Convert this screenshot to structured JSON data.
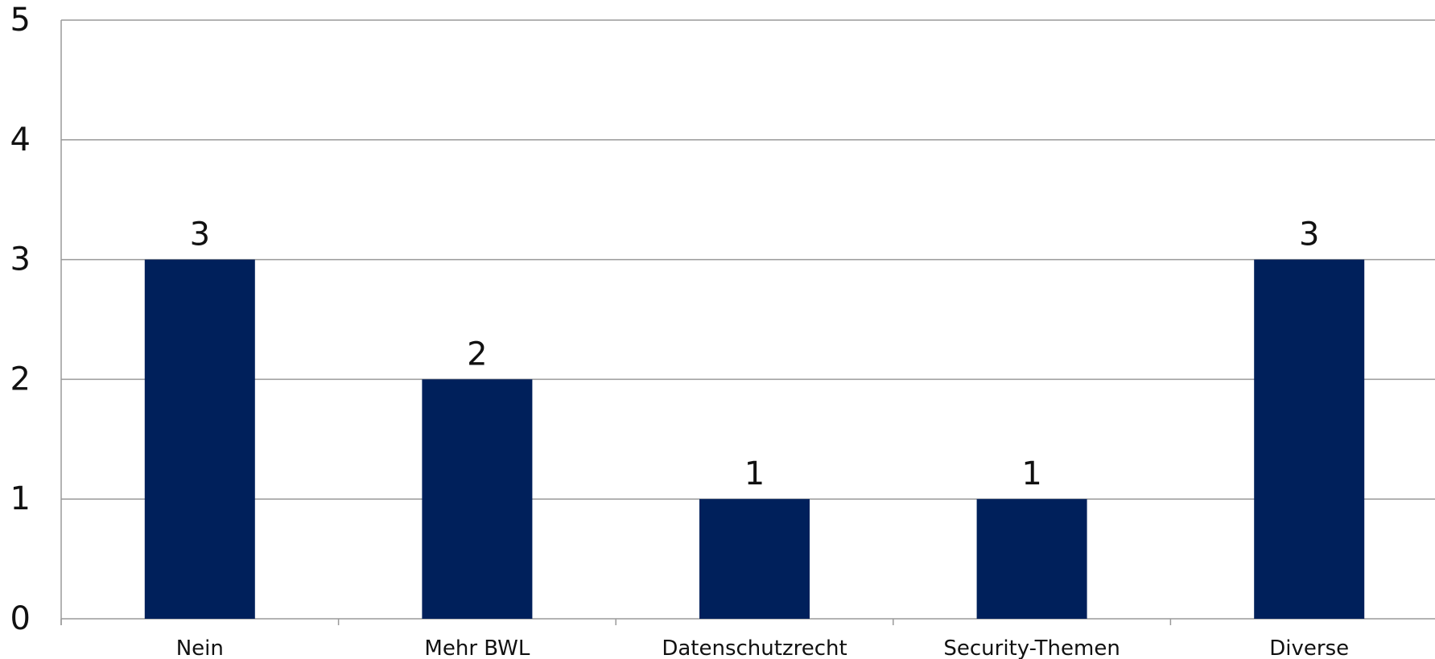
{
  "chart_data": {
    "type": "bar",
    "title": "",
    "xlabel": "",
    "ylabel": "",
    "categories": [
      "Nein",
      "Mehr BWL",
      "Datenschutzrecht",
      "Security-Themen",
      "Diverse"
    ],
    "series": [
      {
        "values": [
          3,
          2,
          1,
          1,
          3
        ]
      }
    ],
    "data_labels": [
      "3",
      "2",
      "1",
      "1",
      "3"
    ],
    "ylim": [
      0,
      5
    ],
    "y_ticks": [
      0,
      1,
      2,
      3,
      4,
      5
    ],
    "y_tick_labels": [
      "0",
      "1",
      "2",
      "3",
      "4",
      "5"
    ],
    "grid": true,
    "legend": "none",
    "colors": {
      "bar": "#00205B",
      "grid": "#9a9a9a",
      "axis": "#9a9a9a",
      "text": "#111111"
    }
  }
}
